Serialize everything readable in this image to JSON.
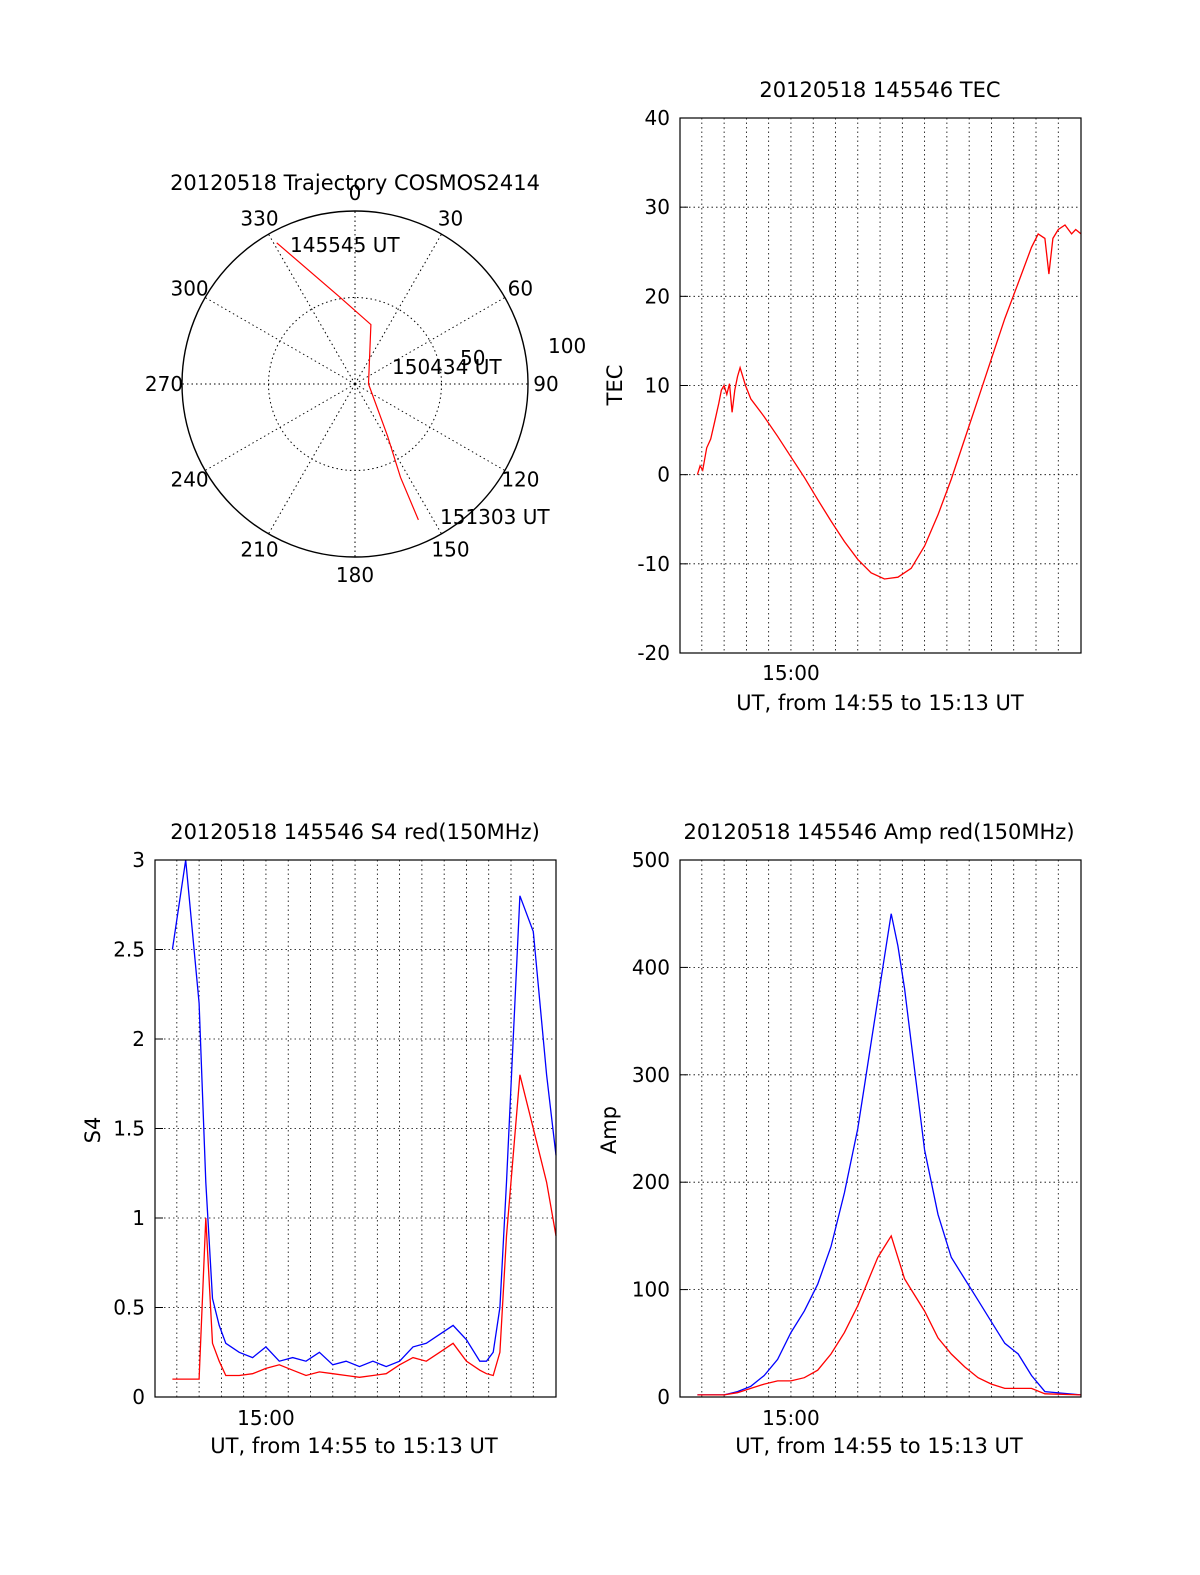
{
  "chart_data": [
    {
      "type": "polar",
      "title": "20120518 Trajectory COSMOS2414",
      "angle_labels": [
        "0",
        "30",
        "60",
        "90",
        "120",
        "150",
        "180",
        "210",
        "240",
        "270",
        "300",
        "330"
      ],
      "radial_labels": [
        "50",
        "100"
      ],
      "start_label": "145545 UT",
      "mid_label": "150434 UT",
      "end_label": "151303 UT",
      "trajectory": {
        "color": "#ff0000",
        "points": [
          {
            "az": 331,
            "el": 6
          },
          {
            "az": 350,
            "el": 44
          },
          {
            "az": 15,
            "el": 58
          },
          {
            "az": 90,
            "el": 83
          },
          {
            "az": 148,
            "el": 58
          },
          {
            "az": 154,
            "el": 36
          },
          {
            "az": 155,
            "el": 12
          }
        ]
      }
    },
    {
      "type": "line",
      "title": "20120518 145546 TEC",
      "xlabel": "UT, from 14:55 to 15:13 UT",
      "ylabel": "TEC",
      "xlim": [
        14.917,
        15.217
      ],
      "ylim": [
        -20,
        40
      ],
      "xtick_label": "15:00",
      "xtick_value": 15.0,
      "yticks": [
        -20,
        -10,
        0,
        10,
        20,
        30,
        40
      ],
      "ytick_labels": [
        "-20",
        "-10",
        "0",
        "10",
        "20",
        "30",
        "40"
      ],
      "grid": true,
      "series": [
        {
          "color": "#ff0000",
          "x": [
            14.93,
            14.932,
            14.934,
            14.937,
            14.94,
            14.943,
            14.946,
            14.948,
            14.95,
            14.952,
            14.954,
            14.956,
            14.958,
            14.96,
            14.962,
            14.964,
            14.966,
            14.97,
            14.98,
            14.99,
            15.0,
            15.01,
            15.02,
            15.03,
            15.04,
            15.05,
            15.06,
            15.07,
            15.08,
            15.09,
            15.1,
            15.11,
            15.12,
            15.13,
            15.14,
            15.15,
            15.16,
            15.17,
            15.18,
            15.185,
            15.19,
            15.193,
            15.196,
            15.2,
            15.205,
            15.21,
            15.213,
            15.217
          ],
          "y": [
            0,
            1,
            0.5,
            3,
            4,
            6,
            8,
            9.5,
            10,
            9,
            10.2,
            7,
            9.5,
            11,
            12,
            11,
            10,
            8.5,
            6.5,
            4.3,
            2.0,
            -0.3,
            -2.8,
            -5.2,
            -7.5,
            -9.5,
            -11,
            -11.7,
            -11.5,
            -10.5,
            -8,
            -4.5,
            -0.5,
            4,
            8.5,
            13,
            17.5,
            21.5,
            25.5,
            27,
            26.5,
            22.5,
            26.5,
            27.5,
            28,
            27,
            27.5,
            27
          ]
        }
      ]
    },
    {
      "type": "line",
      "title": "20120518 145546 S4 red(150MHz)",
      "xlabel": "UT, from 14:55 to 15:13 UT",
      "ylabel": "S4",
      "xlim": [
        14.917,
        15.217
      ],
      "ylim": [
        0,
        3
      ],
      "xtick_label": "15:00",
      "xtick_value": 15.0,
      "yticks": [
        0,
        0.5,
        1,
        1.5,
        2,
        2.5,
        3
      ],
      "ytick_labels": [
        "0",
        "0.5",
        "1",
        "1.5",
        "2",
        "2.5",
        "3"
      ],
      "grid": true,
      "series": [
        {
          "color": "#0000ff",
          "x": [
            14.93,
            14.94,
            14.95,
            14.955,
            14.96,
            14.965,
            14.97,
            14.98,
            14.99,
            15.0,
            15.01,
            15.02,
            15.03,
            15.04,
            15.05,
            15.06,
            15.07,
            15.08,
            15.09,
            15.1,
            15.11,
            15.12,
            15.13,
            15.14,
            15.15,
            15.16,
            15.165,
            15.17,
            15.175,
            15.18,
            15.19,
            15.2,
            15.21,
            15.217
          ],
          "y": [
            2.5,
            3,
            2.2,
            1.2,
            0.55,
            0.4,
            0.3,
            0.25,
            0.22,
            0.28,
            0.2,
            0.22,
            0.2,
            0.25,
            0.18,
            0.2,
            0.17,
            0.2,
            0.17,
            0.2,
            0.28,
            0.3,
            0.35,
            0.4,
            0.32,
            0.2,
            0.2,
            0.25,
            0.5,
            1.2,
            2.8,
            2.6,
            1.8,
            1.35
          ]
        },
        {
          "color": "#ff0000",
          "x": [
            14.93,
            14.94,
            14.95,
            14.955,
            14.96,
            14.965,
            14.97,
            14.98,
            14.99,
            15.0,
            15.01,
            15.02,
            15.03,
            15.04,
            15.05,
            15.06,
            15.07,
            15.08,
            15.09,
            15.1,
            15.11,
            15.12,
            15.13,
            15.14,
            15.15,
            15.16,
            15.165,
            15.17,
            15.175,
            15.18,
            15.19,
            15.2,
            15.21,
            15.217
          ],
          "y": [
            0.1,
            0.1,
            0.1,
            1.0,
            0.3,
            0.2,
            0.12,
            0.12,
            0.13,
            0.16,
            0.18,
            0.15,
            0.12,
            0.14,
            0.13,
            0.12,
            0.11,
            0.12,
            0.13,
            0.18,
            0.22,
            0.2,
            0.25,
            0.3,
            0.2,
            0.15,
            0.13,
            0.12,
            0.25,
            0.9,
            1.8,
            1.5,
            1.2,
            0.9
          ]
        }
      ]
    },
    {
      "type": "line",
      "title": "20120518 145546 Amp red(150MHz)",
      "xlabel": "UT, from 14:55 to 15:13 UT",
      "ylabel": "Amp",
      "xlim": [
        14.917,
        15.217
      ],
      "ylim": [
        0,
        500
      ],
      "xtick_label": "15:00",
      "xtick_value": 15.0,
      "yticks": [
        0,
        100,
        200,
        300,
        400,
        500
      ],
      "ytick_labels": [
        "0",
        "100",
        "200",
        "300",
        "400",
        "500"
      ],
      "grid": true,
      "series": [
        {
          "color": "#0000ff",
          "x": [
            14.93,
            14.95,
            14.96,
            14.97,
            14.98,
            14.99,
            15.0,
            15.01,
            15.02,
            15.03,
            15.04,
            15.05,
            15.055,
            15.06,
            15.065,
            15.07,
            15.075,
            15.08,
            15.085,
            15.09,
            15.1,
            15.11,
            15.12,
            15.13,
            15.14,
            15.15,
            15.16,
            15.17,
            15.18,
            15.19,
            15.217
          ],
          "y": [
            2,
            2,
            5,
            10,
            20,
            35,
            60,
            80,
            105,
            140,
            190,
            250,
            290,
            330,
            370,
            410,
            450,
            420,
            380,
            330,
            230,
            170,
            130,
            110,
            90,
            70,
            50,
            40,
            20,
            5,
            2
          ]
        },
        {
          "color": "#ff0000",
          "x": [
            14.93,
            14.95,
            14.96,
            14.97,
            14.98,
            14.99,
            15.0,
            15.01,
            15.02,
            15.03,
            15.04,
            15.05,
            15.055,
            15.06,
            15.065,
            15.07,
            15.075,
            15.08,
            15.085,
            15.09,
            15.1,
            15.11,
            15.12,
            15.13,
            15.14,
            15.15,
            15.16,
            15.17,
            15.18,
            15.19,
            15.217
          ],
          "y": [
            2,
            2,
            4,
            8,
            12,
            15,
            15,
            18,
            25,
            40,
            60,
            85,
            100,
            115,
            130,
            140,
            150,
            130,
            110,
            100,
            80,
            55,
            40,
            28,
            18,
            12,
            8,
            8,
            8,
            3,
            2
          ]
        }
      ]
    }
  ]
}
